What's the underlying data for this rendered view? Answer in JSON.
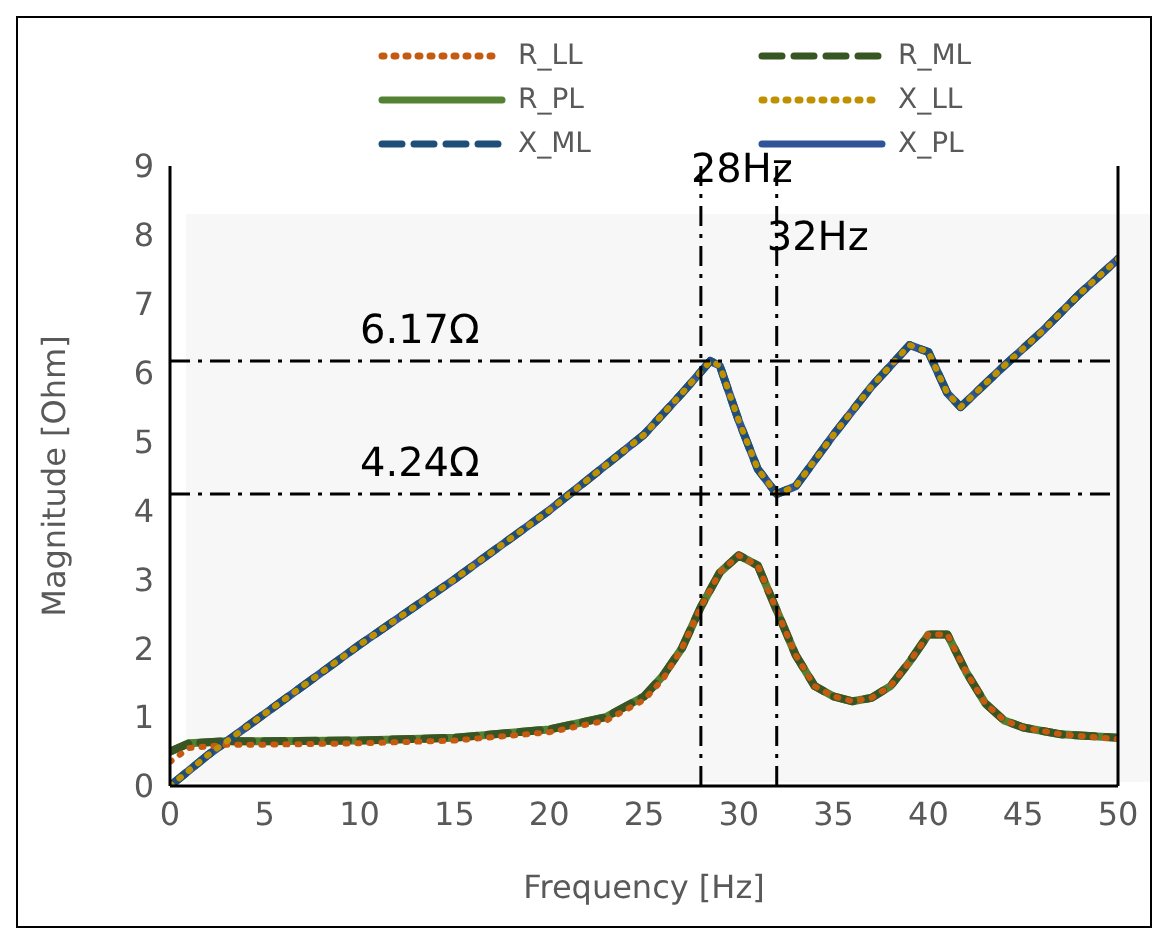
{
  "chart_data": {
    "type": "line",
    "xlabel": "Frequency [Hz]",
    "ylabel": "Magnitude [Ohm]",
    "xlim": [
      0,
      50
    ],
    "ylim": [
      0,
      9
    ],
    "xticks": [
      0,
      5,
      10,
      15,
      20,
      25,
      30,
      35,
      40,
      45,
      50
    ],
    "yticks": [
      0,
      1,
      2,
      3,
      4,
      5,
      6,
      7,
      8,
      9
    ],
    "grid": false,
    "legend": "top",
    "marker": "none",
    "series": [
      {
        "name": "R_PL",
        "color": "#548235",
        "line_style": "solid",
        "x": [
          0,
          1,
          3,
          5,
          10,
          15,
          20,
          23,
          25,
          26,
          27,
          28,
          29,
          30,
          31,
          32,
          33,
          34,
          35,
          36,
          37,
          38,
          39,
          40,
          41,
          42,
          43,
          44,
          45,
          47,
          50
        ],
        "values": [
          0.5,
          0.62,
          0.65,
          0.65,
          0.66,
          0.7,
          0.82,
          1.0,
          1.3,
          1.6,
          2.0,
          2.6,
          3.1,
          3.35,
          3.2,
          2.55,
          1.9,
          1.45,
          1.3,
          1.23,
          1.28,
          1.45,
          1.8,
          2.2,
          2.2,
          1.65,
          1.2,
          0.95,
          0.85,
          0.75,
          0.7
        ]
      },
      {
        "name": "X_PL",
        "color": "#2f5597",
        "line_style": "solid",
        "x": [
          0,
          2,
          5,
          10,
          15,
          20,
          25,
          27,
          28.5,
          29,
          30,
          31,
          32,
          33,
          35,
          37,
          39,
          40,
          41,
          41.7,
          44,
          46,
          48,
          50
        ],
        "values": [
          0,
          0.45,
          1.05,
          2.05,
          3.0,
          4.0,
          5.1,
          5.7,
          6.17,
          6.1,
          5.3,
          4.6,
          4.24,
          4.35,
          5.1,
          5.8,
          6.4,
          6.3,
          5.7,
          5.5,
          6.1,
          6.6,
          7.15,
          7.65
        ]
      },
      {
        "name": "R_ML",
        "color": "#375623",
        "line_style": "dashed",
        "x": [
          0,
          1,
          3,
          5,
          10,
          15,
          20,
          23,
          25,
          26,
          27,
          28,
          29,
          30,
          31,
          32,
          33,
          34,
          35,
          36,
          37,
          38,
          39,
          40,
          41,
          42,
          43,
          44,
          45,
          47,
          50
        ],
        "values": [
          0.5,
          0.62,
          0.65,
          0.65,
          0.66,
          0.7,
          0.82,
          1.0,
          1.3,
          1.6,
          2.0,
          2.6,
          3.1,
          3.35,
          3.2,
          2.55,
          1.9,
          1.45,
          1.3,
          1.23,
          1.28,
          1.45,
          1.8,
          2.2,
          2.2,
          1.65,
          1.2,
          0.95,
          0.85,
          0.75,
          0.7
        ]
      },
      {
        "name": "X_ML",
        "color": "#1f4e79",
        "line_style": "dashed",
        "x": [
          0,
          2,
          5,
          10,
          15,
          20,
          25,
          27,
          28.5,
          29,
          30,
          31,
          32,
          33,
          35,
          37,
          39,
          40,
          41,
          41.7,
          44,
          46,
          48,
          50
        ],
        "values": [
          0,
          0.45,
          1.05,
          2.05,
          3.0,
          4.0,
          5.1,
          5.7,
          6.17,
          6.1,
          5.3,
          4.6,
          4.24,
          4.35,
          5.1,
          5.8,
          6.4,
          6.3,
          5.7,
          5.5,
          6.1,
          6.6,
          7.15,
          7.65
        ]
      },
      {
        "name": "R_LL",
        "color": "#c55a11",
        "line_style": "dotted",
        "x": [
          0,
          1,
          3,
          5,
          10,
          15,
          20,
          23,
          25,
          26,
          27,
          28,
          29,
          30,
          31,
          32,
          33,
          34,
          35,
          36,
          37,
          38,
          39,
          40,
          41,
          42,
          43,
          44,
          45,
          47,
          50
        ],
        "values": [
          0.35,
          0.55,
          0.6,
          0.6,
          0.62,
          0.66,
          0.78,
          0.95,
          1.25,
          1.55,
          2.0,
          2.6,
          3.1,
          3.35,
          3.2,
          2.55,
          1.9,
          1.45,
          1.3,
          1.23,
          1.28,
          1.45,
          1.8,
          2.2,
          2.2,
          1.65,
          1.2,
          0.95,
          0.85,
          0.75,
          0.68
        ]
      },
      {
        "name": "X_LL",
        "color": "#bf9000",
        "line_style": "dotted",
        "x": [
          0,
          2,
          5,
          10,
          15,
          20,
          25,
          27,
          28.5,
          29,
          30,
          31,
          32,
          33,
          35,
          37,
          39,
          40,
          41,
          41.7,
          44,
          46,
          48,
          50
        ],
        "values": [
          0,
          0.45,
          1.05,
          2.05,
          3.0,
          4.0,
          5.1,
          5.7,
          6.17,
          6.1,
          5.3,
          4.6,
          4.24,
          4.35,
          5.1,
          5.8,
          6.4,
          6.3,
          5.7,
          5.5,
          6.1,
          6.6,
          7.15,
          7.65
        ]
      }
    ],
    "ref_lines": [
      {
        "axis": "y",
        "value": 6.17,
        "label": "6.17Ω",
        "color": "#000000"
      },
      {
        "axis": "y",
        "value": 4.24,
        "label": "4.24Ω",
        "color": "#000000"
      },
      {
        "axis": "x",
        "value": 28,
        "label": "28Hz",
        "color": "#000000"
      },
      {
        "axis": "x",
        "value": 32,
        "label": "32Hz",
        "color": "#000000"
      }
    ]
  }
}
